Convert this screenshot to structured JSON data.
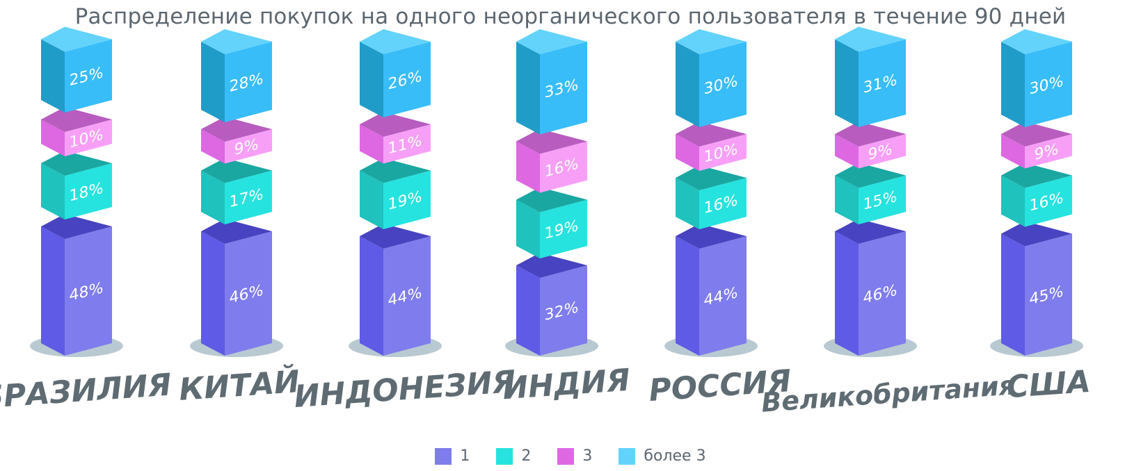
{
  "chart_data": {
    "type": "bar",
    "stacked": true,
    "title": "Распределение покупок на одного неорганического пользователя в течение 90 дней",
    "categories": [
      "БРАЗИЛИЯ",
      "КИТАЙ",
      "ИНДОНЕЗИЯ",
      "ИНДИЯ",
      "РОССИЯ",
      "Великобритания",
      "США"
    ],
    "series": [
      {
        "name": "1",
        "values": [
          48,
          46,
          44,
          32,
          44,
          46,
          45
        ],
        "labels": [
          "48%",
          "46%",
          "44%",
          "32%",
          "44%",
          "46%",
          "45%"
        ]
      },
      {
        "name": "2",
        "values": [
          18,
          17,
          19,
          19,
          16,
          15,
          16
        ],
        "labels": [
          "18%",
          "17%",
          "19%",
          "19%",
          "16%",
          "15%",
          "16%"
        ]
      },
      {
        "name": "3",
        "values": [
          10,
          9,
          11,
          16,
          10,
          9,
          9
        ],
        "labels": [
          "10%",
          "9%",
          "11%",
          "16%",
          "10%",
          "9%",
          "9%"
        ]
      },
      {
        "name": "более 3",
        "values": [
          25,
          28,
          26,
          33,
          30,
          31,
          30
        ],
        "labels": [
          "25%",
          "28%",
          "26%",
          "33%",
          "30%",
          "31%",
          "30%"
        ]
      }
    ],
    "ylim": [
      0,
      100
    ],
    "legend_position": "bottom",
    "grid": false,
    "colors": {
      "1": {
        "front": "#7f7ced",
        "side": "#5f5be6",
        "top": "#4843c0"
      },
      "2": {
        "front": "#27e3df",
        "side": "#1fc2bd",
        "top": "#1aa7a2"
      },
      "3": {
        "front": "#f79ff7",
        "side": "#dd68e2",
        "top": "#b85dbf"
      },
      "более 3": {
        "front": "#38bdf8",
        "side": "#209cc9",
        "top": "#63d3fb"
      }
    },
    "base_ellipse_color": "#b9c9d1",
    "category_label_color": "#5f6b73"
  }
}
